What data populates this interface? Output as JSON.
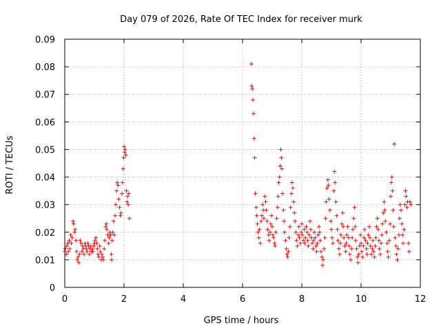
{
  "chart_data": {
    "type": "scatter",
    "title": "Day 079 of 2026, Rate Of TEC Index for receiver murk",
    "xlabel": "GPS time / hours",
    "ylabel": "ROTI / TECUs",
    "xlim": [
      0,
      12
    ],
    "ylim": [
      0,
      0.09
    ],
    "x_ticks": [
      "0",
      "2",
      "4",
      "6",
      "8",
      "10",
      "12"
    ],
    "y_ticks": [
      "0",
      "0.01",
      "0.02",
      "0.03",
      "0.04",
      "0.05",
      "0.06",
      "0.07",
      "0.08",
      "0.09"
    ],
    "grid": true,
    "marker": "plus",
    "colors": {
      "points": "#ff0000"
    },
    "series": [
      {
        "values": [
          [
            0.0,
            0.013
          ],
          [
            0.02,
            0.014
          ],
          [
            0.05,
            0.012
          ],
          [
            0.07,
            0.015
          ],
          [
            0.1,
            0.016
          ],
          [
            0.12,
            0.013
          ],
          [
            0.15,
            0.017
          ],
          [
            0.17,
            0.014
          ],
          [
            0.2,
            0.019
          ],
          [
            0.22,
            0.016
          ],
          [
            0.25,
            0.018
          ],
          [
            0.28,
            0.024
          ],
          [
            0.3,
            0.023
          ],
          [
            0.33,
            0.02
          ],
          [
            0.35,
            0.021
          ],
          [
            0.38,
            0.017
          ],
          [
            0.4,
            0.013
          ],
          [
            0.42,
            0.01
          ],
          [
            0.45,
            0.011
          ],
          [
            0.47,
            0.009
          ],
          [
            0.5,
            0.012
          ],
          [
            0.52,
            0.017
          ],
          [
            0.55,
            0.016
          ],
          [
            0.58,
            0.013
          ],
          [
            0.6,
            0.015
          ],
          [
            0.63,
            0.014
          ],
          [
            0.65,
            0.012
          ],
          [
            0.68,
            0.016
          ],
          [
            0.7,
            0.015
          ],
          [
            0.73,
            0.014
          ],
          [
            0.75,
            0.013
          ],
          [
            0.78,
            0.016
          ],
          [
            0.8,
            0.015
          ],
          [
            0.83,
            0.012
          ],
          [
            0.85,
            0.014
          ],
          [
            0.88,
            0.015
          ],
          [
            0.9,
            0.013
          ],
          [
            0.93,
            0.014
          ],
          [
            0.95,
            0.013
          ],
          [
            0.98,
            0.015
          ],
          [
            1.0,
            0.016
          ],
          [
            1.02,
            0.017
          ],
          [
            1.05,
            0.018
          ],
          [
            1.08,
            0.016
          ],
          [
            1.1,
            0.014
          ],
          [
            1.12,
            0.012
          ],
          [
            1.15,
            0.011
          ],
          [
            1.18,
            0.015
          ],
          [
            1.2,
            0.013
          ],
          [
            1.23,
            0.01
          ],
          [
            1.25,
            0.012
          ],
          [
            1.28,
            0.011
          ],
          [
            1.3,
            0.01
          ],
          [
            1.33,
            0.014
          ],
          [
            1.35,
            0.017
          ],
          [
            1.38,
            0.022
          ],
          [
            1.4,
            0.023
          ],
          [
            1.42,
            0.021
          ],
          [
            1.45,
            0.019
          ],
          [
            1.48,
            0.016
          ],
          [
            1.5,
            0.018
          ],
          [
            1.52,
            0.02
          ],
          [
            1.55,
            0.019
          ],
          [
            1.57,
            0.012
          ],
          [
            1.58,
            0.01
          ],
          [
            1.6,
            0.017
          ],
          [
            1.62,
            0.02
          ],
          [
            1.65,
            0.024
          ],
          [
            1.67,
            0.019
          ],
          [
            1.7,
            0.026
          ],
          [
            1.72,
            0.03
          ],
          [
            1.75,
            0.035
          ],
          [
            1.77,
            0.038
          ],
          [
            1.8,
            0.037
          ],
          [
            1.82,
            0.032
          ],
          [
            1.85,
            0.029
          ],
          [
            1.88,
            0.026
          ],
          [
            1.9,
            0.027
          ],
          [
            1.93,
            0.034
          ],
          [
            1.95,
            0.038
          ],
          [
            1.97,
            0.043
          ],
          [
            1.99,
            0.047
          ],
          [
            2.0,
            0.051
          ],
          [
            2.02,
            0.049
          ],
          [
            2.04,
            0.05
          ],
          [
            2.06,
            0.048
          ],
          [
            2.08,
            0.035
          ],
          [
            2.1,
            0.031
          ],
          [
            2.12,
            0.033
          ],
          [
            2.14,
            0.03
          ],
          [
            2.16,
            0.034
          ],
          [
            2.18,
            0.025
          ],
          [
            6.3,
            0.081
          ],
          [
            6.31,
            0.073
          ],
          [
            6.33,
            0.072
          ],
          [
            6.35,
            0.068
          ],
          [
            6.37,
            0.063
          ],
          [
            6.39,
            0.054
          ],
          [
            6.41,
            0.047
          ],
          [
            6.43,
            0.034
          ],
          [
            6.46,
            0.029
          ],
          [
            6.48,
            0.026
          ],
          [
            6.5,
            0.023
          ],
          [
            6.52,
            0.02
          ],
          [
            6.55,
            0.018
          ],
          [
            6.57,
            0.021
          ],
          [
            6.6,
            0.016
          ],
          [
            6.63,
            0.024
          ],
          [
            6.65,
            0.026
          ],
          [
            6.68,
            0.03
          ],
          [
            6.7,
            0.028
          ],
          [
            6.72,
            0.025
          ],
          [
            6.75,
            0.033
          ],
          [
            6.78,
            0.031
          ],
          [
            6.8,
            0.028
          ],
          [
            6.83,
            0.024
          ],
          [
            6.85,
            0.021
          ],
          [
            6.88,
            0.019
          ],
          [
            6.9,
            0.017
          ],
          [
            6.93,
            0.02
          ],
          [
            6.95,
            0.023
          ],
          [
            6.98,
            0.026
          ],
          [
            7.0,
            0.022
          ],
          [
            7.02,
            0.019
          ],
          [
            7.05,
            0.018
          ],
          [
            7.08,
            0.016
          ],
          [
            7.1,
            0.015
          ],
          [
            7.12,
            0.02
          ],
          [
            7.15,
            0.025
          ],
          [
            7.18,
            0.029
          ],
          [
            7.2,
            0.033
          ],
          [
            7.22,
            0.038
          ],
          [
            7.25,
            0.04
          ],
          [
            7.27,
            0.044
          ],
          [
            7.29,
            0.05
          ],
          [
            7.31,
            0.047
          ],
          [
            7.33,
            0.043
          ],
          [
            7.35,
            0.034
          ],
          [
            7.38,
            0.028
          ],
          [
            7.4,
            0.024
          ],
          [
            7.42,
            0.02
          ],
          [
            7.45,
            0.017
          ],
          [
            7.48,
            0.014
          ],
          [
            7.5,
            0.012
          ],
          [
            7.52,
            0.011
          ],
          [
            7.55,
            0.013
          ],
          [
            7.57,
            0.018
          ],
          [
            7.6,
            0.022
          ],
          [
            7.62,
            0.029
          ],
          [
            7.65,
            0.034
          ],
          [
            7.67,
            0.038
          ],
          [
            7.7,
            0.036
          ],
          [
            7.72,
            0.031
          ],
          [
            7.75,
            0.027
          ],
          [
            7.77,
            0.024
          ],
          [
            7.8,
            0.02
          ],
          [
            7.82,
            0.017
          ],
          [
            7.85,
            0.015
          ],
          [
            7.88,
            0.019
          ],
          [
            7.9,
            0.022
          ],
          [
            7.92,
            0.018
          ],
          [
            7.95,
            0.016
          ],
          [
            7.98,
            0.02
          ],
          [
            8.0,
            0.023
          ],
          [
            8.02,
            0.019
          ],
          [
            8.05,
            0.017
          ],
          [
            8.08,
            0.021
          ],
          [
            8.1,
            0.016
          ],
          [
            8.12,
            0.018
          ],
          [
            8.15,
            0.022
          ],
          [
            8.18,
            0.02
          ],
          [
            8.2,
            0.017
          ],
          [
            8.22,
            0.015
          ],
          [
            8.25,
            0.019
          ],
          [
            8.28,
            0.024
          ],
          [
            8.3,
            0.021
          ],
          [
            8.32,
            0.018
          ],
          [
            8.35,
            0.016
          ],
          [
            8.38,
            0.014
          ],
          [
            8.4,
            0.017
          ],
          [
            8.42,
            0.02
          ],
          [
            8.45,
            0.018
          ],
          [
            8.48,
            0.015
          ],
          [
            8.5,
            0.013
          ],
          [
            8.52,
            0.016
          ],
          [
            8.55,
            0.019
          ],
          [
            8.58,
            0.022
          ],
          [
            8.6,
            0.02
          ],
          [
            8.62,
            0.017
          ],
          [
            8.65,
            0.013
          ],
          [
            8.68,
            0.011
          ],
          [
            8.7,
            0.008
          ],
          [
            8.72,
            0.01
          ],
          [
            8.75,
            0.014
          ],
          [
            8.78,
            0.018
          ],
          [
            8.8,
            0.025
          ],
          [
            8.82,
            0.031
          ],
          [
            8.85,
            0.036
          ],
          [
            8.88,
            0.039
          ],
          [
            8.9,
            0.037
          ],
          [
            8.92,
            0.032
          ],
          [
            8.95,
            0.028
          ],
          [
            8.98,
            0.024
          ],
          [
            9.0,
            0.021
          ],
          [
            9.02,
            0.018
          ],
          [
            9.05,
            0.016
          ],
          [
            9.08,
            0.035
          ],
          [
            9.1,
            0.042
          ],
          [
            9.12,
            0.038
          ],
          [
            9.15,
            0.031
          ],
          [
            9.18,
            0.026
          ],
          [
            9.2,
            0.021
          ],
          [
            9.22,
            0.017
          ],
          [
            9.25,
            0.014
          ],
          [
            9.28,
            0.012
          ],
          [
            9.3,
            0.016
          ],
          [
            9.32,
            0.019
          ],
          [
            9.35,
            0.023
          ],
          [
            9.38,
            0.027
          ],
          [
            9.4,
            0.022
          ],
          [
            9.42,
            0.018
          ],
          [
            9.45,
            0.015
          ],
          [
            9.48,
            0.013
          ],
          [
            9.5,
            0.016
          ],
          [
            9.52,
            0.019
          ],
          [
            9.55,
            0.022
          ],
          [
            9.58,
            0.018
          ],
          [
            9.6,
            0.015
          ],
          [
            9.62,
            0.012
          ],
          [
            9.65,
            0.01
          ],
          [
            9.68,
            0.014
          ],
          [
            9.7,
            0.018
          ],
          [
            9.72,
            0.021
          ],
          [
            9.75,
            0.025
          ],
          [
            9.78,
            0.029
          ],
          [
            9.8,
            0.022
          ],
          [
            9.82,
            0.017
          ],
          [
            9.85,
            0.014
          ],
          [
            9.88,
            0.011
          ],
          [
            9.9,
            0.009
          ],
          [
            9.92,
            0.012
          ],
          [
            9.95,
            0.015
          ],
          [
            9.98,
            0.019
          ],
          [
            10.0,
            0.016
          ],
          [
            10.02,
            0.013
          ],
          [
            10.05,
            0.011
          ],
          [
            10.08,
            0.015
          ],
          [
            10.1,
            0.018
          ],
          [
            10.12,
            0.021
          ],
          [
            10.15,
            0.017
          ],
          [
            10.18,
            0.014
          ],
          [
            10.2,
            0.012
          ],
          [
            10.22,
            0.016
          ],
          [
            10.25,
            0.019
          ],
          [
            10.28,
            0.022
          ],
          [
            10.3,
            0.018
          ],
          [
            10.32,
            0.015
          ],
          [
            10.35,
            0.012
          ],
          [
            10.38,
            0.014
          ],
          [
            10.4,
            0.017
          ],
          [
            10.42,
            0.013
          ],
          [
            10.45,
            0.011
          ],
          [
            10.48,
            0.015
          ],
          [
            10.5,
            0.018
          ],
          [
            10.52,
            0.022
          ],
          [
            10.55,
            0.025
          ],
          [
            10.58,
            0.021
          ],
          [
            10.6,
            0.017
          ],
          [
            10.62,
            0.014
          ],
          [
            10.65,
            0.012
          ],
          [
            10.68,
            0.016
          ],
          [
            10.7,
            0.019
          ],
          [
            10.72,
            0.023
          ],
          [
            10.75,
            0.027
          ],
          [
            10.78,
            0.031
          ],
          [
            10.8,
            0.028
          ],
          [
            10.82,
            0.024
          ],
          [
            10.85,
            0.02
          ],
          [
            10.88,
            0.016
          ],
          [
            10.9,
            0.013
          ],
          [
            10.92,
            0.011
          ],
          [
            10.95,
            0.017
          ],
          [
            10.98,
            0.023
          ],
          [
            11.0,
            0.033
          ],
          [
            11.02,
            0.038
          ],
          [
            11.04,
            0.04
          ],
          [
            11.06,
            0.035
          ],
          [
            11.08,
            0.028
          ],
          [
            11.1,
            0.022
          ],
          [
            11.12,
            0.052
          ],
          [
            11.15,
            0.018
          ],
          [
            11.18,
            0.015
          ],
          [
            11.2,
            0.012
          ],
          [
            11.22,
            0.01
          ],
          [
            11.25,
            0.014
          ],
          [
            11.28,
            0.019
          ],
          [
            11.3,
            0.025
          ],
          [
            11.32,
            0.03
          ],
          [
            11.35,
            0.028
          ],
          [
            11.38,
            0.023
          ],
          [
            11.4,
            0.019
          ],
          [
            11.42,
            0.016
          ],
          [
            11.45,
            0.021
          ],
          [
            11.48,
            0.03
          ],
          [
            11.5,
            0.035
          ],
          [
            11.52,
            0.033
          ],
          [
            11.55,
            0.029
          ],
          [
            11.57,
            0.031
          ],
          [
            11.6,
            0.016
          ],
          [
            11.62,
            0.013
          ],
          [
            11.65,
            0.031
          ],
          [
            11.68,
            0.03
          ]
        ]
      }
    ]
  }
}
